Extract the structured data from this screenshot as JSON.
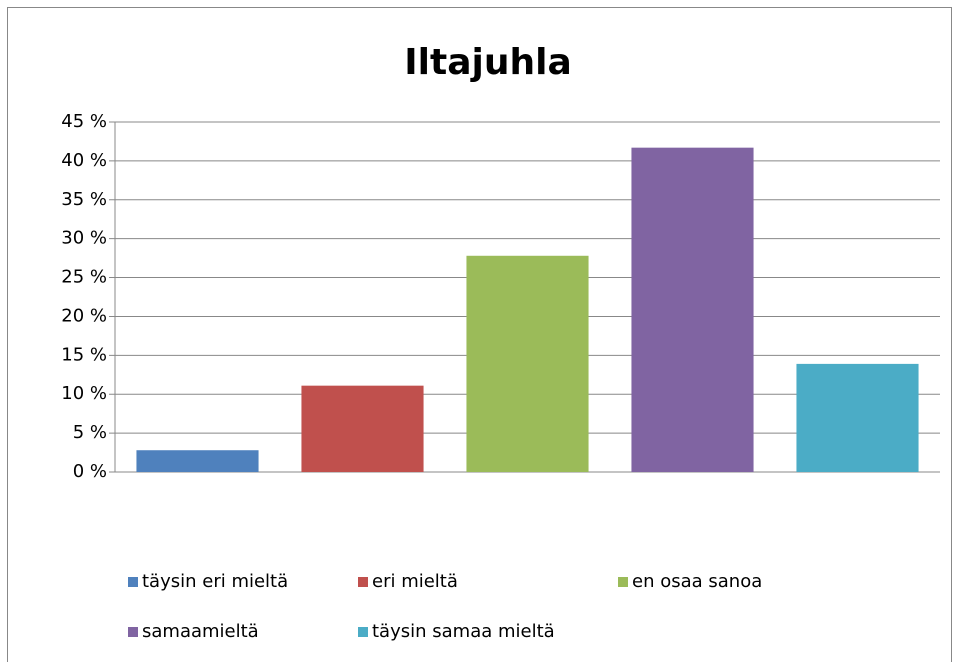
{
  "chart_data": {
    "type": "bar",
    "title": "Iltajuhla",
    "series": [
      {
        "name": "täysin eri mieltä",
        "color": "#4f81bd",
        "values": [
          2.8
        ]
      },
      {
        "name": "eri mieltä",
        "color": "#c0504d",
        "values": [
          11.1
        ]
      },
      {
        "name": "en osaa sanoa",
        "color": "#9bbb59",
        "values": [
          27.8
        ]
      },
      {
        "name": "samaamieltä",
        "color": "#8064a2",
        "values": [
          41.7
        ]
      },
      {
        "name": "täysin samaa mieltä",
        "color": "#4bacc6",
        "values": [
          13.9
        ]
      }
    ],
    "ylim": [
      0,
      45
    ],
    "yticks": [
      {
        "value": 0,
        "label": "0 %"
      },
      {
        "value": 5,
        "label": "5 %"
      },
      {
        "value": 10,
        "label": "10 %"
      },
      {
        "value": 15,
        "label": "15 %"
      },
      {
        "value": 20,
        "label": "20 %"
      },
      {
        "value": 25,
        "label": "25 %"
      },
      {
        "value": 30,
        "label": "30 %"
      },
      {
        "value": 35,
        "label": "35 %"
      },
      {
        "value": 40,
        "label": "40 %"
      },
      {
        "value": 45,
        "label": "45 %"
      }
    ],
    "grid": true,
    "legend": "bottom"
  }
}
